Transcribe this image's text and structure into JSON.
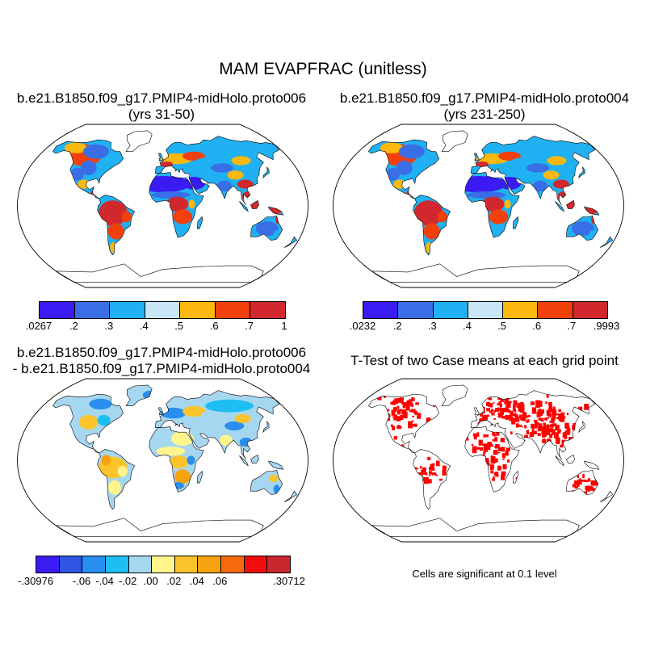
{
  "title": "MAM EVAPFRAC (unitless)",
  "panels": {
    "top_left": {
      "title_line1": "b.e21.B1850.f09_g17.PMIP4-midHolo.proto006",
      "title_line2": "(yrs 31-50)",
      "colorbar": {
        "colors": [
          "#3a1cf2",
          "#3a6ee6",
          "#1fb1f2",
          "#c9e6f6",
          "#fbb80f",
          "#f2400d",
          "#d1282d"
        ],
        "labels": [
          ".0267",
          ".2",
          ".3",
          ".4",
          ".5",
          ".6",
          ".7",
          "1"
        ]
      }
    },
    "top_right": {
      "title_line1": "b.e21.B1850.f09_g17.PMIP4-midHolo.proto004",
      "title_line2": "(yrs 231-250)",
      "colorbar": {
        "colors": [
          "#3a1cf2",
          "#3a6ee6",
          "#1fb1f2",
          "#c9e6f6",
          "#fbb80f",
          "#f2400d",
          "#d1282d"
        ],
        "labels": [
          ".0232",
          ".2",
          ".3",
          ".4",
          ".5",
          ".6",
          ".7",
          ".9993"
        ]
      }
    },
    "bottom_left": {
      "title_line1": "b.e21.B1850.f09_g17.PMIP4-midHolo.proto006",
      "title_line2": "- b.e21.B1850.f09_g17.PMIP4-midHolo.proto004",
      "colorbar": {
        "colors": [
          "#3a1cf2",
          "#2f55e3",
          "#2a8ef0",
          "#1fbef2",
          "#a6d7f0",
          "#fff58c",
          "#fbc42d",
          "#f7a20f",
          "#f56a0f",
          "#f20d0d",
          "#c8282d"
        ],
        "labels": [
          "-.30976",
          "-.06",
          "-.04",
          "-.02",
          ".00",
          ".02",
          ".04",
          ".06",
          ".30712"
        ]
      }
    },
    "bottom_right": {
      "title": "T-Test of two Case means at each grid point",
      "note": "Cells are significant at 0.1 level",
      "significance_color": "#ff0000"
    }
  }
}
